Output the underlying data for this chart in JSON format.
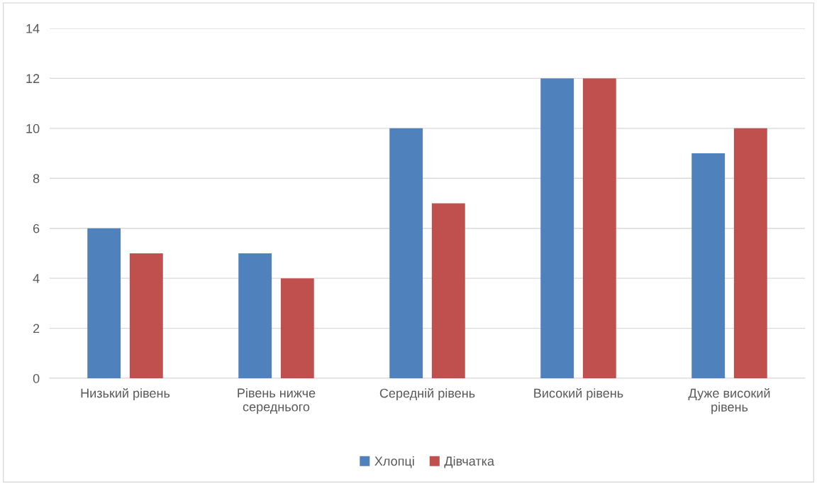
{
  "chart_data": {
    "type": "bar",
    "categories": [
      "Низький рівень",
      "Рівень нижче середнього",
      "Середній рівень",
      "Високий рівень",
      "Дуже високий рівень"
    ],
    "series": [
      {
        "name": "Хлопці",
        "color": "#4f81bd",
        "values": [
          6,
          5,
          10,
          12,
          9
        ]
      },
      {
        "name": "Дівчатка",
        "color": "#c0504d",
        "values": [
          5,
          4,
          7,
          12,
          10
        ]
      }
    ],
    "ylim": [
      0,
      14
    ],
    "yticks": [
      0,
      2,
      4,
      6,
      8,
      10,
      12,
      14
    ],
    "grid": "y",
    "legend": "bottom"
  }
}
